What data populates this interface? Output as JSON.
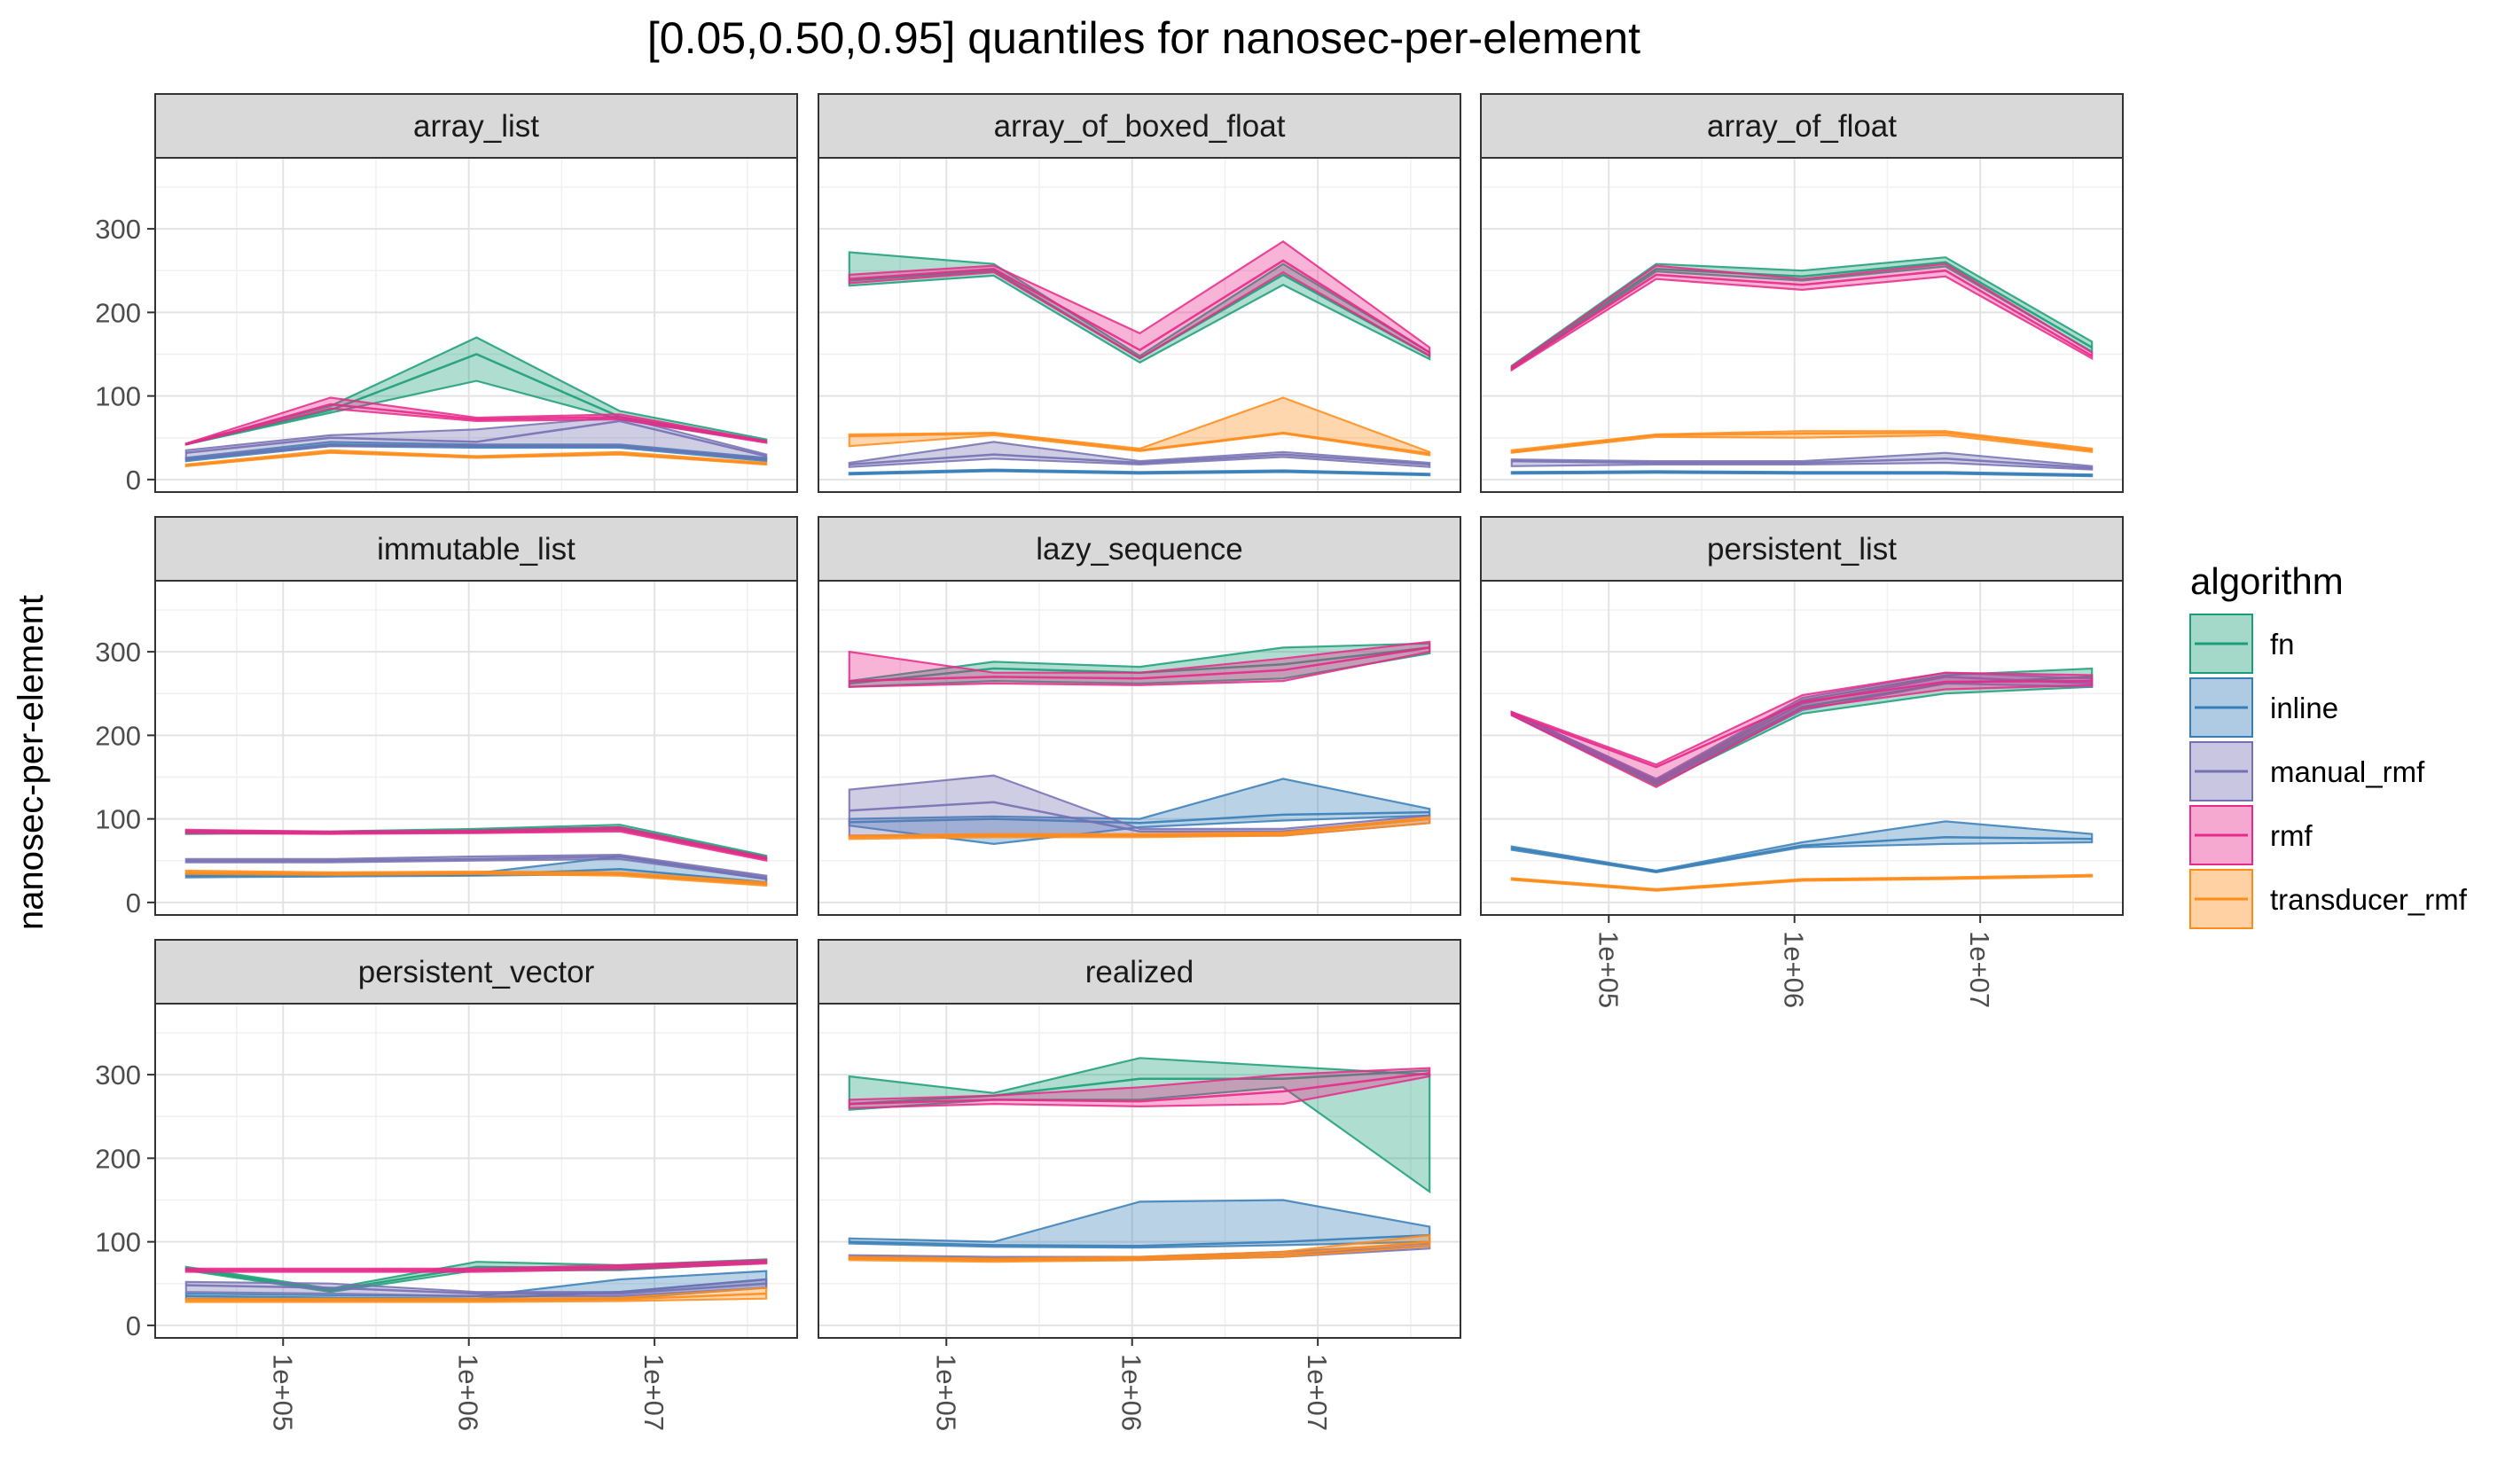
{
  "chart_data": {
    "type": "area",
    "title": "[0.05,0.50,0.95] quantiles for nanosec-per-element",
    "xlabel": "",
    "ylabel": "nanosec-per-element",
    "x_scale": "log10",
    "x_ticks": [
      "1e+05",
      "1e+06",
      "1e+07"
    ],
    "y_ticks": [
      "0",
      "100",
      "200",
      "300"
    ],
    "ylim": [
      -15,
      385
    ],
    "grid": true,
    "legend": {
      "title": "algorithm",
      "placement": "right"
    },
    "colors": {
      "fn": "#1b9e77",
      "inline": "#377eb8",
      "manual_rmf": "#7570b3",
      "rmf": "#e7298a",
      "transducer_rmf": "#ff8c1a"
    },
    "x": [
      30000,
      180000,
      1100000,
      6500000,
      40000000
    ],
    "panels": [
      {
        "name": "array_list",
        "series": [
          {
            "name": "fn",
            "median": [
              42,
              83,
              150,
              75,
              46
            ],
            "low": [
              42,
              80,
              118,
              72,
              45
            ],
            "high": [
              43,
              88,
              170,
              82,
              48
            ]
          },
          {
            "name": "inline",
            "median": [
              24,
              42,
              40,
              40,
              24
            ],
            "low": [
              22,
              40,
              38,
              38,
              22
            ],
            "high": [
              26,
              45,
              42,
              42,
              26
            ]
          },
          {
            "name": "manual_rmf",
            "median": [
              32,
              50,
              45,
              70,
              28
            ],
            "low": [
              25,
              40,
              40,
              40,
              24
            ],
            "high": [
              35,
              53,
              60,
              75,
              30
            ]
          },
          {
            "name": "rmf",
            "median": [
              42,
              90,
              72,
              75,
              45
            ],
            "low": [
              42,
              85,
              70,
              72,
              44
            ],
            "high": [
              43,
              98,
              74,
              78,
              46
            ]
          },
          {
            "name": "transducer_rmf",
            "median": [
              17,
              33,
              27,
              31,
              19
            ],
            "low": [
              16,
              32,
              26,
              30,
              18
            ],
            "high": [
              18,
              35,
              28,
              33,
              20
            ]
          }
        ]
      },
      {
        "name": "array_of_boxed_float",
        "series": [
          {
            "name": "fn",
            "median": [
              238,
              250,
              145,
              245,
              148
            ],
            "low": [
              232,
              244,
              140,
              233,
              144
            ],
            "high": [
              272,
              258,
              148,
              258,
              152
            ]
          },
          {
            "name": "inline",
            "median": [
              7,
              11,
              8,
              10,
              6
            ],
            "low": [
              6,
              10,
              7,
              9,
              5
            ],
            "high": [
              8,
              12,
              9,
              11,
              7
            ]
          },
          {
            "name": "manual_rmf",
            "median": [
              18,
              30,
              20,
              30,
              18
            ],
            "low": [
              15,
              25,
              18,
              27,
              15
            ],
            "high": [
              20,
              45,
              22,
              33,
              20
            ]
          },
          {
            "name": "rmf",
            "median": [
              240,
              252,
              155,
              262,
              152
            ],
            "low": [
              235,
              248,
              145,
              248,
              148
            ],
            "high": [
              245,
              256,
              175,
              285,
              158
            ]
          },
          {
            "name": "transducer_rmf",
            "median": [
              52,
              55,
              35,
              56,
              31
            ],
            "low": [
              40,
              53,
              34,
              55,
              29
            ],
            "high": [
              54,
              56,
              37,
              98,
              33
            ]
          }
        ]
      },
      {
        "name": "array_of_float",
        "series": [
          {
            "name": "fn",
            "median": [
              134,
              252,
              243,
              260,
              158
            ],
            "low": [
              132,
              249,
              238,
              255,
              153
            ],
            "high": [
              136,
              258,
              250,
              266,
              165
            ]
          },
          {
            "name": "inline",
            "median": [
              8,
              9,
              8,
              8,
              5
            ],
            "low": [
              7,
              8,
              7,
              7,
              4
            ],
            "high": [
              9,
              10,
              9,
              9,
              6
            ]
          },
          {
            "name": "manual_rmf",
            "median": [
              22,
              20,
              20,
              25,
              14
            ],
            "low": [
              16,
              18,
              18,
              20,
              12
            ],
            "high": [
              24,
              22,
              22,
              32,
              16
            ]
          },
          {
            "name": "rmf",
            "median": [
              133,
              245,
              233,
              250,
              148
            ],
            "low": [
              131,
              240,
              227,
              243,
              145
            ],
            "high": [
              135,
              256,
              240,
              258,
              152
            ]
          },
          {
            "name": "transducer_rmf",
            "median": [
              33,
              53,
              55,
              56,
              35
            ],
            "low": [
              32,
              51,
              50,
              53,
              33
            ],
            "high": [
              35,
              54,
              58,
              58,
              37
            ]
          }
        ]
      },
      {
        "name": "immutable_list",
        "series": [
          {
            "name": "fn",
            "median": [
              84,
              84,
              86,
              90,
              54
            ],
            "low": [
              82,
              83,
              84,
              88,
              52
            ],
            "high": [
              86,
              85,
              88,
              93,
              56
            ]
          },
          {
            "name": "inline",
            "median": [
              32,
              33,
              33,
              40,
              24
            ],
            "low": [
              30,
              31,
              32,
              34,
              22
            ],
            "high": [
              34,
              35,
              35,
              55,
              28
            ]
          },
          {
            "name": "manual_rmf",
            "median": [
              50,
              50,
              52,
              55,
              30
            ],
            "low": [
              48,
              48,
              50,
              52,
              28
            ],
            "high": [
              52,
              52,
              55,
              57,
              32
            ]
          },
          {
            "name": "rmf",
            "median": [
              85,
              83,
              84,
              87,
              52
            ],
            "low": [
              83,
              82,
              83,
              85,
              50
            ],
            "high": [
              87,
              85,
              86,
              90,
              54
            ]
          },
          {
            "name": "transducer_rmf",
            "median": [
              36,
              34,
              35,
              34,
              22
            ],
            "low": [
              34,
              33,
              34,
              32,
              20
            ],
            "high": [
              38,
              36,
              37,
              36,
              24
            ]
          }
        ]
      },
      {
        "name": "lazy_sequence",
        "series": [
          {
            "name": "fn",
            "median": [
              262,
              280,
              275,
              285,
              305
            ],
            "low": [
              258,
              265,
              262,
              268,
              298
            ],
            "high": [
              265,
              288,
              282,
              305,
              310
            ]
          },
          {
            "name": "inline",
            "median": [
              96,
              100,
              95,
              105,
              108
            ],
            "low": [
              92,
              70,
              90,
              98,
              104
            ],
            "high": [
              100,
              103,
              100,
              148,
              112
            ]
          },
          {
            "name": "manual_rmf",
            "median": [
              110,
              120,
              85,
              85,
              100
            ],
            "low": [
              80,
              80,
              80,
              80,
              95
            ],
            "high": [
              135,
              152,
              88,
              88,
              104
            ]
          },
          {
            "name": "rmf",
            "median": [
              265,
              270,
              268,
              278,
              305
            ],
            "low": [
              258,
              262,
              260,
              265,
              300
            ],
            "high": [
              300,
              275,
              275,
              292,
              312
            ]
          },
          {
            "name": "transducer_rmf",
            "median": [
              78,
              80,
              80,
              82,
              100
            ],
            "low": [
              76,
              78,
              78,
              80,
              95
            ],
            "high": [
              80,
              82,
              82,
              84,
              102
            ]
          }
        ]
      },
      {
        "name": "persistent_list",
        "series": [
          {
            "name": "fn",
            "median": [
              226,
              143,
              234,
              262,
              270
            ],
            "low": [
              224,
              140,
              226,
              250,
              258
            ],
            "high": [
              228,
              146,
              242,
              272,
              280
            ]
          },
          {
            "name": "inline",
            "median": [
              65,
              37,
              68,
              78,
              76
            ],
            "low": [
              63,
              36,
              66,
              70,
              72
            ],
            "high": [
              67,
              38,
              72,
              97,
              82
            ]
          },
          {
            "name": "manual_rmf",
            "median": [
              226,
              145,
              238,
              270,
              262
            ],
            "low": [
              224,
              142,
              230,
              262,
              258
            ],
            "high": [
              228,
              148,
              245,
              275,
              268
            ]
          },
          {
            "name": "rmf",
            "median": [
              226,
              162,
              240,
              264,
              265
            ],
            "low": [
              224,
              138,
              232,
              255,
              260
            ],
            "high": [
              228,
              165,
              248,
              275,
              272
            ]
          },
          {
            "name": "transducer_rmf",
            "median": [
              28,
              15,
              27,
              29,
              32
            ],
            "low": [
              27,
              14,
              26,
              28,
              31
            ],
            "high": [
              29,
              16,
              28,
              30,
              33
            ]
          }
        ]
      },
      {
        "name": "persistent_vector",
        "series": [
          {
            "name": "fn",
            "median": [
              68,
              42,
              70,
              68,
              77
            ],
            "low": [
              66,
              40,
              66,
              66,
              75
            ],
            "high": [
              70,
              44,
              76,
              72,
              79
            ]
          },
          {
            "name": "inline",
            "median": [
              35,
              33,
              32,
              40,
              55
            ],
            "low": [
              32,
              30,
              30,
              32,
              45
            ],
            "high": [
              38,
              36,
              35,
              55,
              65
            ]
          },
          {
            "name": "manual_rmf",
            "median": [
              48,
              45,
              38,
              38,
              50
            ],
            "low": [
              40,
              38,
              35,
              35,
              45
            ],
            "high": [
              52,
              50,
              40,
              40,
              55
            ]
          },
          {
            "name": "rmf",
            "median": [
              66,
              66,
              66,
              70,
              76
            ],
            "low": [
              64,
              64,
              64,
              67,
              74
            ],
            "high": [
              68,
              68,
              68,
              72,
              78
            ]
          },
          {
            "name": "transducer_rmf",
            "median": [
              30,
              30,
              30,
              31,
              38
            ],
            "low": [
              28,
              28,
              28,
              29,
              32
            ],
            "high": [
              32,
              32,
              32,
              33,
              45
            ]
          }
        ]
      },
      {
        "name": "realized",
        "series": [
          {
            "name": "fn",
            "median": [
              265,
              275,
              295,
              295,
              305
            ],
            "low": [
              258,
              270,
              270,
              285,
              160
            ],
            "high": [
              298,
              278,
              320,
              310,
              300
            ]
          },
          {
            "name": "inline",
            "median": [
              100,
              96,
              95,
              100,
              108
            ],
            "low": [
              98,
              94,
              93,
              96,
              100
            ],
            "high": [
              104,
              100,
              148,
              150,
              118
            ]
          },
          {
            "name": "manual_rmf",
            "median": [
              82,
              80,
              80,
              85,
              95
            ],
            "low": [
              80,
              78,
              78,
              82,
              92
            ],
            "high": [
              84,
              82,
              82,
              88,
              98
            ]
          },
          {
            "name": "rmf",
            "median": [
              265,
              270,
              268,
              280,
              302
            ],
            "low": [
              260,
              265,
              262,
              265,
              298
            ],
            "high": [
              270,
              275,
              285,
              300,
              308
            ]
          },
          {
            "name": "transducer_rmf",
            "median": [
              80,
              78,
              80,
              85,
              100
            ],
            "low": [
              78,
              76,
              78,
              82,
              95
            ],
            "high": [
              82,
              80,
              82,
              88,
              108
            ]
          }
        ]
      }
    ]
  }
}
